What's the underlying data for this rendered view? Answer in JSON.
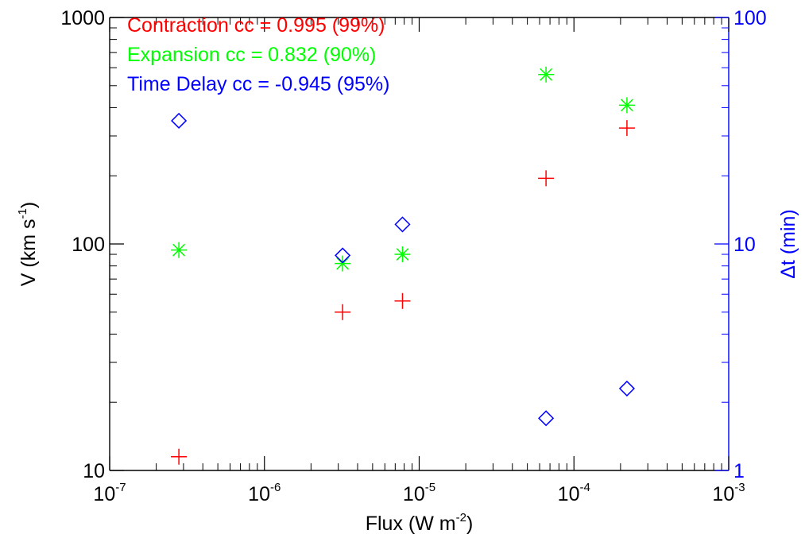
{
  "chart_data": {
    "type": "scatter",
    "title": "",
    "xlabel": {
      "text": "Flux (W m",
      "sup": "-2",
      "suffix": ")"
    },
    "ylabel_left": {
      "text": "V (km s",
      "sup": "-1",
      "suffix": ")"
    },
    "ylabel_right": {
      "text": "Δt (min)"
    },
    "x_scale": "log",
    "y_left_scale": "log",
    "y_right_scale": "log",
    "xlim": [
      1e-07,
      0.001
    ],
    "ylim_left": [
      10,
      1000
    ],
    "ylim_right": [
      1,
      100
    ],
    "x_ticks": [
      {
        "base": "10",
        "exp": "-7"
      },
      {
        "base": "10",
        "exp": "-6"
      },
      {
        "base": "10",
        "exp": "-5"
      },
      {
        "base": "10",
        "exp": "-4"
      },
      {
        "base": "10",
        "exp": "-3"
      }
    ],
    "y_left_ticks": [
      "10",
      "100",
      "1000"
    ],
    "y_right_ticks": [
      "1",
      "10",
      "100"
    ],
    "grid": false,
    "legend_placement": "top-left",
    "legend": [
      {
        "text": "Contraction cc = 0.995 (99%)",
        "color": "#ff0000"
      },
      {
        "text": "Expansion cc = 0.832 (90%)",
        "color": "#00ff00"
      },
      {
        "text": "Time Delay cc = -0.945 (95%)",
        "color": "#0000ff"
      }
    ],
    "right_axis_color": "#0000ff",
    "series": [
      {
        "marker": "plus",
        "color": "#ff0000",
        "axis": "left",
        "points": [
          {
            "x": 2.8e-07,
            "y": 11.5
          },
          {
            "x": 3.2e-06,
            "y": 50
          },
          {
            "x": 7.8e-06,
            "y": 56
          },
          {
            "x": 6.6e-05,
            "y": 195
          },
          {
            "x": 0.00022,
            "y": 325
          }
        ]
      },
      {
        "marker": "asterisk",
        "color": "#00ff00",
        "axis": "left",
        "points": [
          {
            "x": 2.8e-07,
            "y": 94
          },
          {
            "x": 3.2e-06,
            "y": 82
          },
          {
            "x": 7.8e-06,
            "y": 90
          },
          {
            "x": 6.6e-05,
            "y": 560
          },
          {
            "x": 0.00022,
            "y": 410
          }
        ]
      },
      {
        "marker": "diamond",
        "color": "#0000ff",
        "axis": "right",
        "points": [
          {
            "x": 2.8e-07,
            "y": 35
          },
          {
            "x": 3.2e-06,
            "y": 8.9
          },
          {
            "x": 7.8e-06,
            "y": 12.2
          },
          {
            "x": 6.6e-05,
            "y": 1.7
          },
          {
            "x": 0.00022,
            "y": 2.3
          }
        ]
      }
    ]
  }
}
